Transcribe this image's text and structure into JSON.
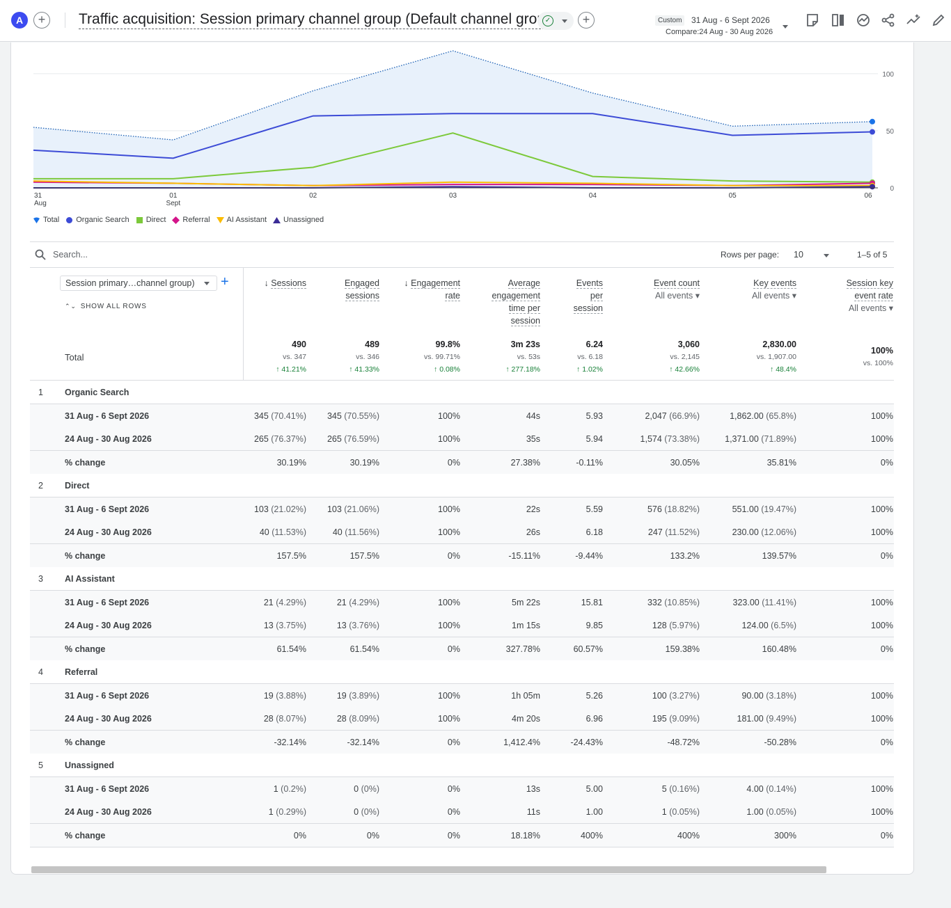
{
  "header": {
    "avatar_letter": "A",
    "title": "Traffic acquisition: Session primary channel group (Default channel group)",
    "custom_badge": "Custom",
    "date_range": "31 Aug - 6 Sept 2026",
    "compare": "Compare:24 Aug - 30 Aug 2026",
    "toolbar_icons": [
      "notes-icon",
      "compare-icon",
      "insights-icon",
      "share-icon",
      "trend-icon",
      "edit-icon"
    ]
  },
  "chart_data": {
    "type": "line",
    "x": [
      "31 Aug",
      "01 Sept",
      "02",
      "03",
      "04",
      "05",
      "06"
    ],
    "x_tick_labels": [
      [
        "31",
        "Aug"
      ],
      [
        "01",
        "Sept"
      ],
      [
        "02",
        ""
      ],
      [
        "03",
        ""
      ],
      [
        "04",
        ""
      ],
      [
        "05",
        ""
      ],
      [
        "06",
        ""
      ]
    ],
    "ylim": [
      0,
      120
    ],
    "y_ticks": [
      "0",
      "50",
      "100"
    ],
    "y_tick_values": [
      0,
      50,
      100
    ],
    "series": [
      {
        "name": "Total",
        "color": "#1a73e8",
        "style": "dotted-area",
        "values": [
          53,
          42,
          85,
          120,
          83,
          54,
          58
        ]
      },
      {
        "name": "Organic Search",
        "color": "#3c4bd6",
        "values": [
          33,
          26,
          63,
          65,
          65,
          46,
          49
        ]
      },
      {
        "name": "Direct",
        "color": "#7cc93a",
        "values": [
          8,
          8,
          18,
          48,
          10,
          6,
          5
        ]
      },
      {
        "name": "Referral",
        "color": "#d4158a",
        "values": [
          5,
          4,
          2,
          3,
          3,
          2,
          4
        ]
      },
      {
        "name": "AI Assistant",
        "color": "#fbbc04",
        "values": [
          6,
          4,
          2,
          5,
          4,
          2,
          2
        ]
      },
      {
        "name": "Unassigned",
        "color": "#3b2c96",
        "values": [
          0,
          0,
          0,
          1,
          0,
          0,
          1
        ]
      }
    ]
  },
  "legend": [
    {
      "label": "Total",
      "color": "#1a73e8",
      "shape": "drop"
    },
    {
      "label": "Organic Search",
      "color": "#3c4bd6",
      "shape": "circle"
    },
    {
      "label": "Direct",
      "color": "#7cc93a",
      "shape": "square"
    },
    {
      "label": "Referral",
      "color": "#d4158a",
      "shape": "diamond"
    },
    {
      "label": "AI Assistant",
      "color": "#fbbc04",
      "shape": "tri-down"
    },
    {
      "label": "Unassigned",
      "color": "#3b2c96",
      "shape": "tri-up"
    }
  ],
  "search": {
    "placeholder": "Search..."
  },
  "pagination": {
    "rows_label": "Rows per page:",
    "rows_value": "10",
    "range": "1–5 of 5"
  },
  "table": {
    "dimension_select": "Session primary…channel group)",
    "show_all": "SHOW ALL ROWS",
    "columns": [
      {
        "lines": [
          "Sessions"
        ],
        "sort": true
      },
      {
        "lines": [
          "Engaged",
          "sessions"
        ]
      },
      {
        "lines": [
          "Engagement",
          "rate"
        ],
        "sort": true
      },
      {
        "lines": [
          "Average",
          "engagement",
          "time per",
          "session"
        ]
      },
      {
        "lines": [
          "Events",
          "per",
          "session"
        ]
      },
      {
        "lines": [
          "Event count"
        ],
        "filter": "All events"
      },
      {
        "lines": [
          "Key events"
        ],
        "filter": "All events"
      },
      {
        "lines": [
          "Session key",
          "event rate"
        ],
        "filter": "All events"
      }
    ],
    "total": {
      "label": "Total",
      "values": [
        "490",
        "489",
        "99.8%",
        "3m 23s",
        "6.24",
        "3,060",
        "2,830.00",
        "100%"
      ],
      "vs": [
        "vs. 347",
        "vs. 346",
        "vs. 99.71%",
        "vs. 53s",
        "vs. 6.18",
        "vs. 2,145",
        "vs. 1,907.00",
        "vs. 100%"
      ],
      "change": [
        "41.21%",
        "41.33%",
        "0.08%",
        "277.18%",
        "1.02%",
        "42.66%",
        "48.4%",
        ""
      ]
    },
    "groups": [
      {
        "num": "1",
        "name": "Organic Search",
        "rows": [
          {
            "label": "31 Aug - 6 Sept 2026",
            "cells": [
              [
                "345",
                "(70.41%)"
              ],
              [
                "345",
                "(70.55%)"
              ],
              [
                "100%",
                ""
              ],
              [
                "44s",
                ""
              ],
              [
                "5.93",
                ""
              ],
              [
                "2,047",
                "(66.9%)"
              ],
              [
                "1,862.00",
                "(65.8%)"
              ],
              [
                "100%",
                ""
              ]
            ]
          },
          {
            "label": "24 Aug - 30 Aug 2026",
            "cells": [
              [
                "265",
                "(76.37%)"
              ],
              [
                "265",
                "(76.59%)"
              ],
              [
                "100%",
                ""
              ],
              [
                "35s",
                ""
              ],
              [
                "5.94",
                ""
              ],
              [
                "1,574",
                "(73.38%)"
              ],
              [
                "1,371.00",
                "(71.89%)"
              ],
              [
                "100%",
                ""
              ]
            ]
          },
          {
            "label": "% change",
            "cells": [
              [
                "30.19%",
                ""
              ],
              [
                "30.19%",
                ""
              ],
              [
                "0%",
                ""
              ],
              [
                "27.38%",
                ""
              ],
              [
                "-0.11%",
                ""
              ],
              [
                "30.05%",
                ""
              ],
              [
                "35.81%",
                ""
              ],
              [
                "0%",
                ""
              ]
            ]
          }
        ]
      },
      {
        "num": "2",
        "name": "Direct",
        "rows": [
          {
            "label": "31 Aug - 6 Sept 2026",
            "cells": [
              [
                "103",
                "(21.02%)"
              ],
              [
                "103",
                "(21.06%)"
              ],
              [
                "100%",
                ""
              ],
              [
                "22s",
                ""
              ],
              [
                "5.59",
                ""
              ],
              [
                "576",
                "(18.82%)"
              ],
              [
                "551.00",
                "(19.47%)"
              ],
              [
                "100%",
                ""
              ]
            ]
          },
          {
            "label": "24 Aug - 30 Aug 2026",
            "cells": [
              [
                "40",
                "(11.53%)"
              ],
              [
                "40",
                "(11.56%)"
              ],
              [
                "100%",
                ""
              ],
              [
                "26s",
                ""
              ],
              [
                "6.18",
                ""
              ],
              [
                "247",
                "(11.52%)"
              ],
              [
                "230.00",
                "(12.06%)"
              ],
              [
                "100%",
                ""
              ]
            ]
          },
          {
            "label": "% change",
            "cells": [
              [
                "157.5%",
                ""
              ],
              [
                "157.5%",
                ""
              ],
              [
                "0%",
                ""
              ],
              [
                "-15.11%",
                ""
              ],
              [
                "-9.44%",
                ""
              ],
              [
                "133.2%",
                ""
              ],
              [
                "139.57%",
                ""
              ],
              [
                "0%",
                ""
              ]
            ]
          }
        ]
      },
      {
        "num": "3",
        "name": "AI Assistant",
        "rows": [
          {
            "label": "31 Aug - 6 Sept 2026",
            "cells": [
              [
                "21",
                "(4.29%)"
              ],
              [
                "21",
                "(4.29%)"
              ],
              [
                "100%",
                ""
              ],
              [
                "5m 22s",
                ""
              ],
              [
                "15.81",
                ""
              ],
              [
                "332",
                "(10.85%)"
              ],
              [
                "323.00",
                "(11.41%)"
              ],
              [
                "100%",
                ""
              ]
            ]
          },
          {
            "label": "24 Aug - 30 Aug 2026",
            "cells": [
              [
                "13",
                "(3.75%)"
              ],
              [
                "13",
                "(3.76%)"
              ],
              [
                "100%",
                ""
              ],
              [
                "1m 15s",
                ""
              ],
              [
                "9.85",
                ""
              ],
              [
                "128",
                "(5.97%)"
              ],
              [
                "124.00",
                "(6.5%)"
              ],
              [
                "100%",
                ""
              ]
            ]
          },
          {
            "label": "% change",
            "cells": [
              [
                "61.54%",
                ""
              ],
              [
                "61.54%",
                ""
              ],
              [
                "0%",
                ""
              ],
              [
                "327.78%",
                ""
              ],
              [
                "60.57%",
                ""
              ],
              [
                "159.38%",
                ""
              ],
              [
                "160.48%",
                ""
              ],
              [
                "0%",
                ""
              ]
            ]
          }
        ]
      },
      {
        "num": "4",
        "name": "Referral",
        "rows": [
          {
            "label": "31 Aug - 6 Sept 2026",
            "cells": [
              [
                "19",
                "(3.88%)"
              ],
              [
                "19",
                "(3.89%)"
              ],
              [
                "100%",
                ""
              ],
              [
                "1h 05m",
                ""
              ],
              [
                "5.26",
                ""
              ],
              [
                "100",
                "(3.27%)"
              ],
              [
                "90.00",
                "(3.18%)"
              ],
              [
                "100%",
                ""
              ]
            ]
          },
          {
            "label": "24 Aug - 30 Aug 2026",
            "cells": [
              [
                "28",
                "(8.07%)"
              ],
              [
                "28",
                "(8.09%)"
              ],
              [
                "100%",
                ""
              ],
              [
                "4m 20s",
                ""
              ],
              [
                "6.96",
                ""
              ],
              [
                "195",
                "(9.09%)"
              ],
              [
                "181.00",
                "(9.49%)"
              ],
              [
                "100%",
                ""
              ]
            ]
          },
          {
            "label": "% change",
            "cells": [
              [
                "-32.14%",
                ""
              ],
              [
                "-32.14%",
                ""
              ],
              [
                "0%",
                ""
              ],
              [
                "1,412.4%",
                ""
              ],
              [
                "-24.43%",
                ""
              ],
              [
                "-48.72%",
                ""
              ],
              [
                "-50.28%",
                ""
              ],
              [
                "0%",
                ""
              ]
            ]
          }
        ]
      },
      {
        "num": "5",
        "name": "Unassigned",
        "rows": [
          {
            "label": "31 Aug - 6 Sept 2026",
            "cells": [
              [
                "1",
                "(0.2%)"
              ],
              [
                "0",
                "(0%)"
              ],
              [
                "0%",
                ""
              ],
              [
                "13s",
                ""
              ],
              [
                "5.00",
                ""
              ],
              [
                "5",
                "(0.16%)"
              ],
              [
                "4.00",
                "(0.14%)"
              ],
              [
                "100%",
                ""
              ]
            ]
          },
          {
            "label": "24 Aug - 30 Aug 2026",
            "cells": [
              [
                "1",
                "(0.29%)"
              ],
              [
                "0",
                "(0%)"
              ],
              [
                "0%",
                ""
              ],
              [
                "11s",
                ""
              ],
              [
                "1.00",
                ""
              ],
              [
                "1",
                "(0.05%)"
              ],
              [
                "1.00",
                "(0.05%)"
              ],
              [
                "100%",
                ""
              ]
            ]
          },
          {
            "label": "% change",
            "cells": [
              [
                "0%",
                ""
              ],
              [
                "0%",
                ""
              ],
              [
                "0%",
                ""
              ],
              [
                "18.18%",
                ""
              ],
              [
                "400%",
                ""
              ],
              [
                "400%",
                ""
              ],
              [
                "300%",
                ""
              ],
              [
                "0%",
                ""
              ]
            ]
          }
        ]
      }
    ]
  }
}
